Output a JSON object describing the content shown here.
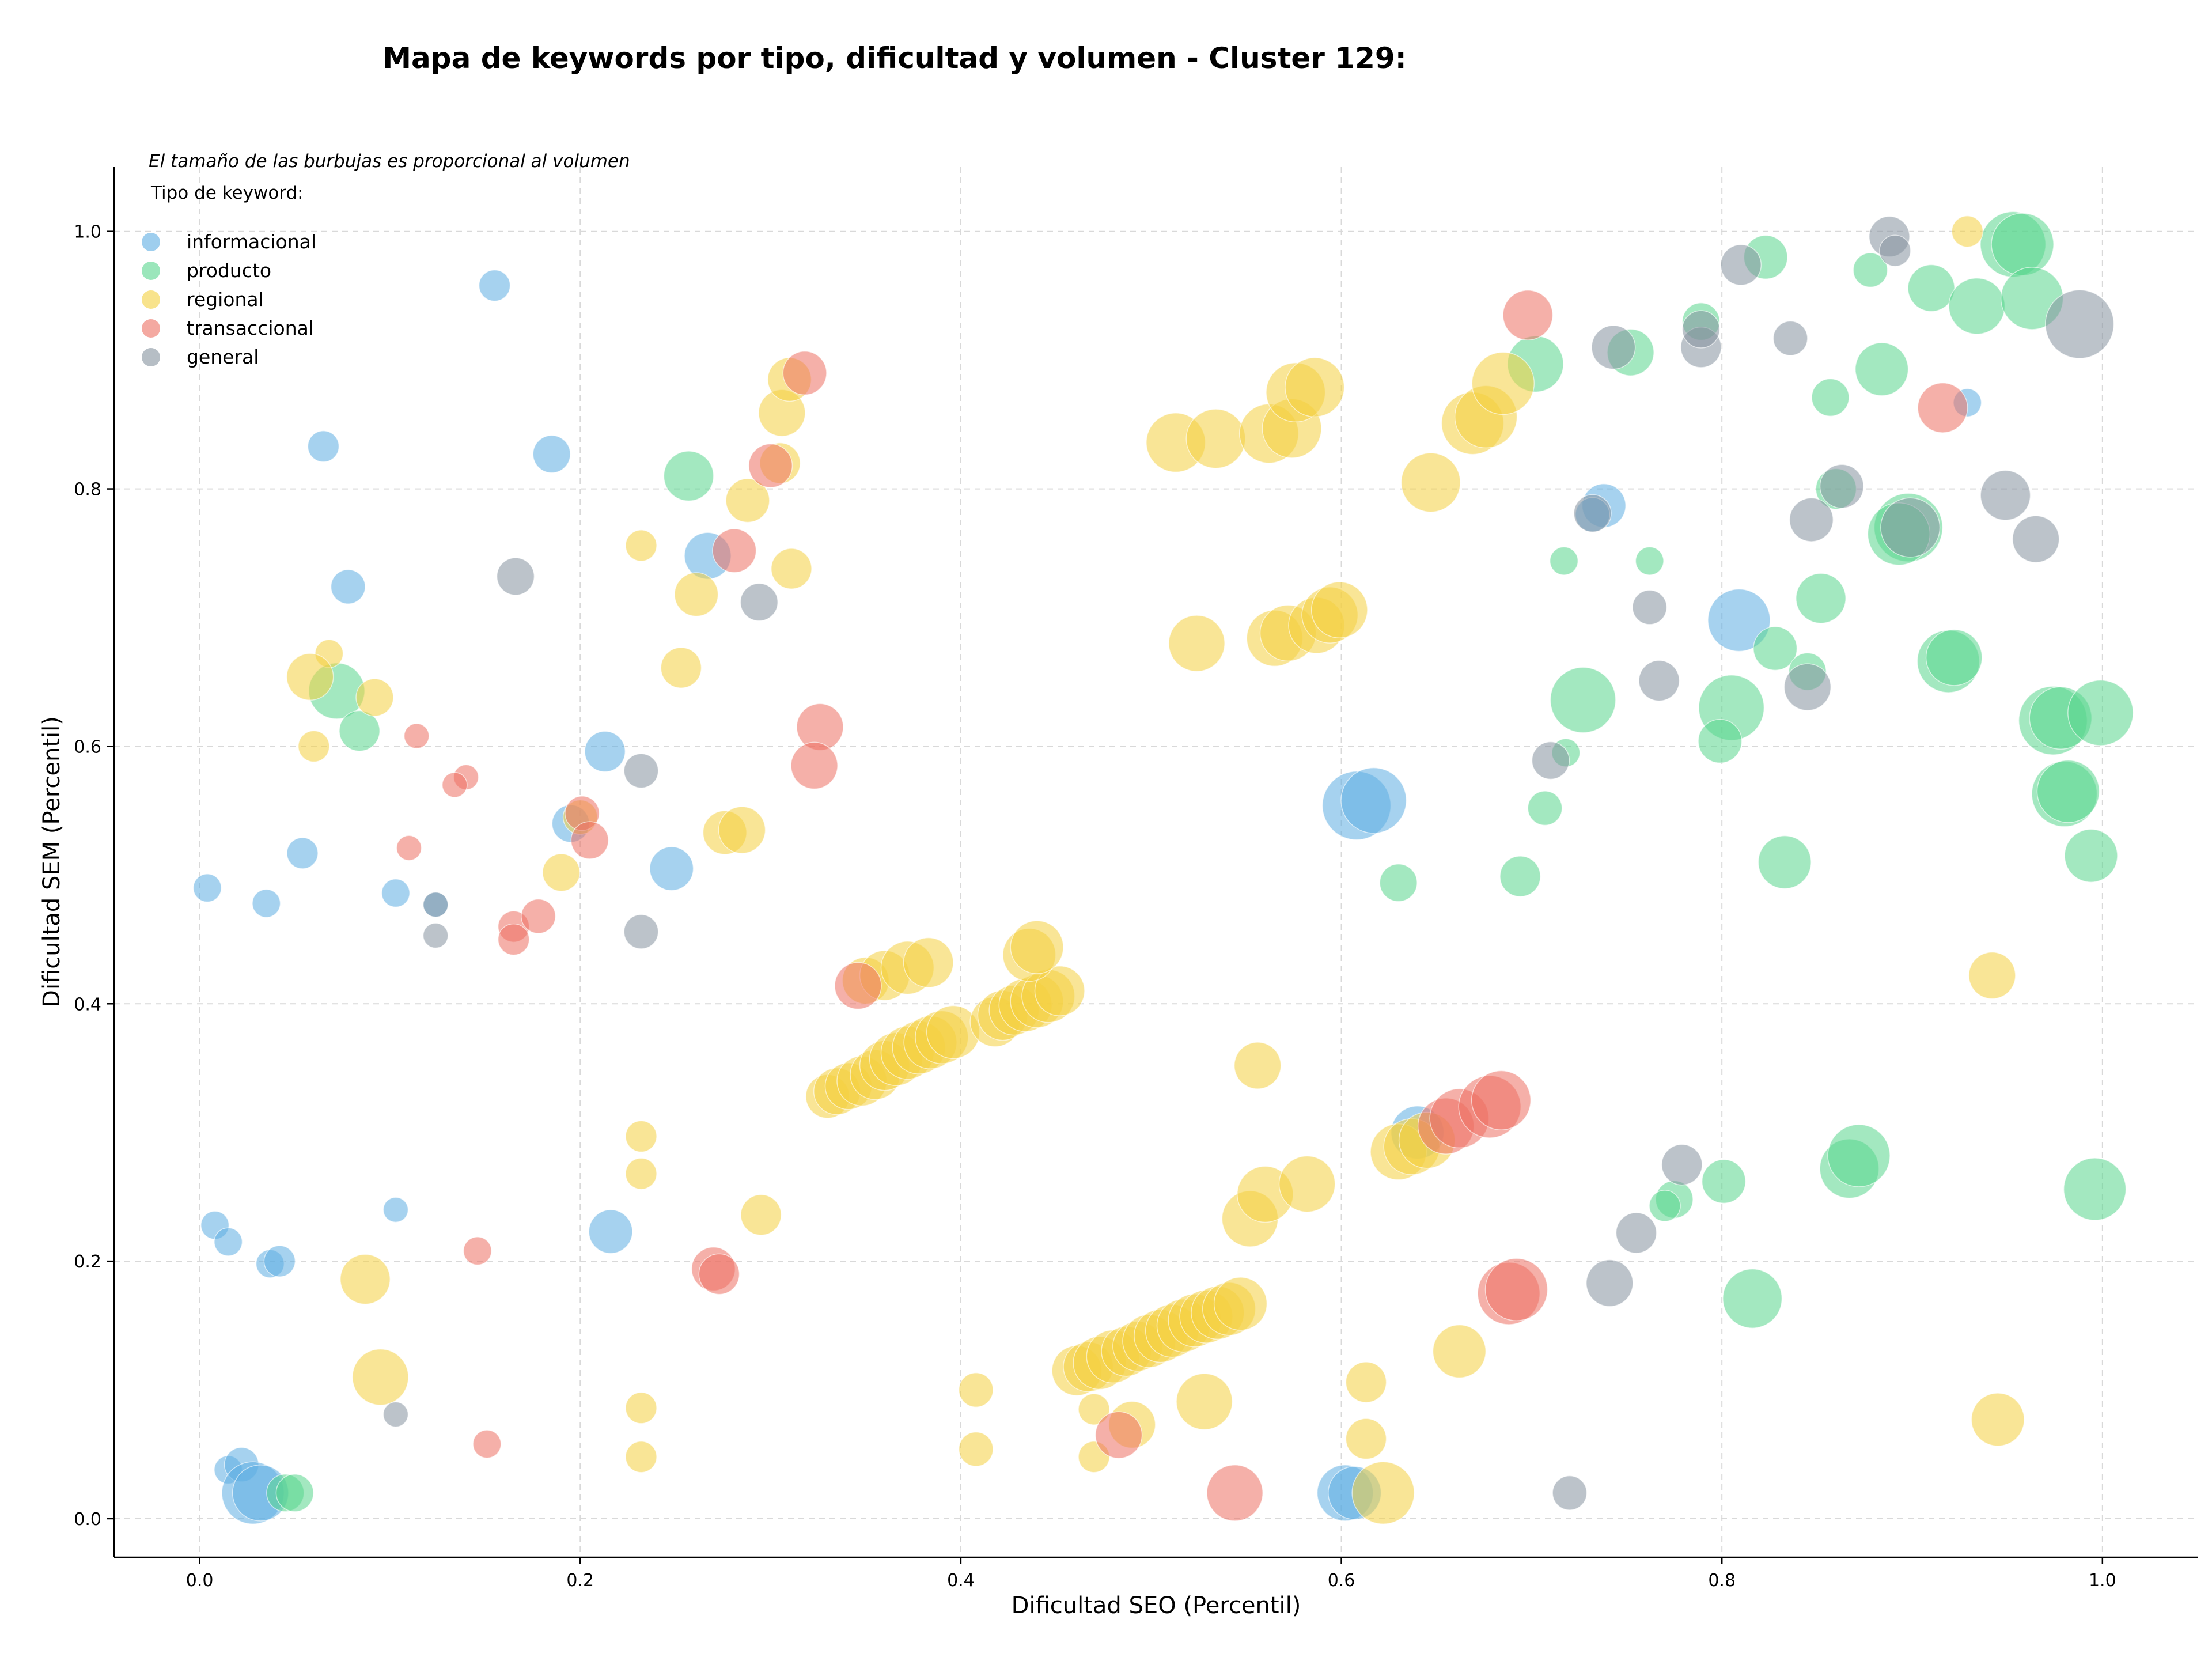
{
  "chart_data": {
    "type": "scatter",
    "title": "Mapa de keywords por tipo, dificultad y volumen - Cluster 129:",
    "xlabel": "Dificultad SEO (Percentil)",
    "ylabel": "Dificultad SEM (Percentil)",
    "xlim": [
      -0.045,
      1.05
    ],
    "ylim": [
      -0.03,
      1.05
    ],
    "x_ticks": [
      "0.0",
      "0.2",
      "0.4",
      "0.6",
      "0.8",
      "1.0"
    ],
    "y_ticks": [
      "0.0",
      "0.2",
      "0.4",
      "0.6",
      "0.8",
      "1.0"
    ],
    "grid": true,
    "annotation": "El tamaño de las burbujas es proporcional al volumen",
    "legend_title": "Tipo de keyword:",
    "legend_position": "top-left",
    "series": [
      {
        "name": "informacional",
        "color": "#5dade2",
        "points": [
          [
            0.155,
            0.958,
            1.0
          ],
          [
            0.065,
            0.833,
            1.0
          ],
          [
            0.185,
            0.827,
            1.2
          ],
          [
            0.078,
            0.724,
            1.1
          ],
          [
            0.213,
            0.596,
            1.3
          ],
          [
            0.195,
            0.54,
            1.2
          ],
          [
            0.054,
            0.517,
            1.0
          ],
          [
            0.004,
            0.49,
            0.9
          ],
          [
            0.103,
            0.486,
            0.9
          ],
          [
            0.035,
            0.478,
            0.9
          ],
          [
            0.124,
            0.477,
            0.8
          ],
          [
            0.248,
            0.505,
            1.4
          ],
          [
            0.267,
            0.748,
            1.5
          ],
          [
            0.008,
            0.228,
            0.9
          ],
          [
            0.015,
            0.215,
            0.9
          ],
          [
            0.037,
            0.198,
            0.9
          ],
          [
            0.042,
            0.2,
            1.0
          ],
          [
            0.103,
            0.24,
            0.8
          ],
          [
            0.216,
            0.223,
            1.4
          ],
          [
            0.015,
            0.038,
            0.9
          ],
          [
            0.022,
            0.042,
            1.1
          ],
          [
            0.028,
            0.02,
            2.0
          ],
          [
            0.032,
            0.02,
            1.8
          ],
          [
            0.608,
            0.554,
            2.2
          ],
          [
            0.617,
            0.558,
            2.1
          ],
          [
            0.602,
            0.02,
            1.8
          ],
          [
            0.607,
            0.02,
            1.7
          ],
          [
            0.64,
            0.3,
            1.7
          ],
          [
            0.738,
            0.787,
            1.4
          ],
          [
            0.732,
            0.78,
            1.1
          ],
          [
            0.809,
            0.698,
            2.0
          ],
          [
            0.929,
            0.867,
            0.9
          ]
        ]
      },
      {
        "name": "producto",
        "color": "#58d68d",
        "points": [
          [
            0.257,
            0.81,
            1.6
          ],
          [
            0.072,
            0.643,
            1.8
          ],
          [
            0.084,
            0.612,
            1.3
          ],
          [
            0.045,
            0.02,
            1.2
          ],
          [
            0.05,
            0.02,
            1.2
          ],
          [
            0.702,
            0.897,
            1.8
          ],
          [
            0.752,
            0.906,
            1.5
          ],
          [
            0.717,
            0.744,
            0.9
          ],
          [
            0.762,
            0.744,
            0.9
          ],
          [
            0.727,
            0.636,
            2.1
          ],
          [
            0.707,
            0.552,
            1.1
          ],
          [
            0.718,
            0.595,
            0.9
          ],
          [
            0.63,
            0.494,
            1.2
          ],
          [
            0.694,
            0.499,
            1.3
          ],
          [
            0.789,
            0.93,
            1.2
          ],
          [
            0.823,
            0.98,
            1.4
          ],
          [
            0.878,
            0.97,
            1.1
          ],
          [
            0.884,
            0.893,
            1.7
          ],
          [
            0.857,
            0.871,
            1.2
          ],
          [
            0.86,
            0.8,
            1.3
          ],
          [
            0.852,
            0.715,
            1.6
          ],
          [
            0.828,
            0.676,
            1.4
          ],
          [
            0.845,
            0.658,
            1.2
          ],
          [
            0.805,
            0.63,
            2.1
          ],
          [
            0.799,
            0.604,
            1.4
          ],
          [
            0.833,
            0.51,
            1.7
          ],
          [
            0.775,
            0.248,
            1.2
          ],
          [
            0.77,
            0.243,
            1.0
          ],
          [
            0.801,
            0.262,
            1.4
          ],
          [
            0.816,
            0.171,
            1.9
          ],
          [
            0.867,
            0.272,
            1.9
          ],
          [
            0.872,
            0.282,
            2.0
          ],
          [
            0.996,
            0.256,
            2.0
          ],
          [
            0.898,
            0.77,
            2.2
          ],
          [
            0.893,
            0.765,
            2.0
          ],
          [
            0.919,
            0.666,
            2.0
          ],
          [
            0.922,
            0.669,
            1.8
          ],
          [
            0.91,
            0.956,
            1.5
          ],
          [
            0.934,
            0.942,
            1.8
          ],
          [
            0.953,
            0.99,
            2.1
          ],
          [
            0.958,
            0.99,
            2.0
          ],
          [
            0.963,
            0.948,
            2.0
          ],
          [
            0.974,
            0.62,
            2.2
          ],
          [
            0.978,
            0.622,
            2.0
          ],
          [
            0.98,
            0.563,
            2.1
          ],
          [
            0.982,
            0.565,
            2.0
          ],
          [
            0.994,
            0.515,
            1.7
          ],
          [
            0.999,
            0.626,
            2.1
          ]
        ]
      },
      {
        "name": "regional",
        "color": "#f4d03f",
        "points": [
          [
            0.068,
            0.672,
            0.9
          ],
          [
            0.058,
            0.654,
            1.5
          ],
          [
            0.092,
            0.638,
            1.2
          ],
          [
            0.06,
            0.6,
            1.0
          ],
          [
            0.087,
            0.186,
            1.6
          ],
          [
            0.095,
            0.11,
            1.8
          ],
          [
            0.232,
            0.756,
            1.0
          ],
          [
            0.253,
            0.661,
            1.3
          ],
          [
            0.261,
            0.718,
            1.4
          ],
          [
            0.19,
            0.502,
            1.2
          ],
          [
            0.2,
            0.545,
            1.1
          ],
          [
            0.232,
            0.297,
            1.0
          ],
          [
            0.232,
            0.268,
            1.0
          ],
          [
            0.295,
            0.236,
            1.3
          ],
          [
            0.232,
            0.086,
            1.0
          ],
          [
            0.232,
            0.048,
            1.0
          ],
          [
            0.288,
            0.791,
            1.4
          ],
          [
            0.306,
            0.859,
            1.5
          ],
          [
            0.311,
            0.738,
            1.3
          ],
          [
            0.31,
            0.885,
            1.4
          ],
          [
            0.305,
            0.82,
            1.3
          ],
          [
            0.276,
            0.533,
            1.4
          ],
          [
            0.285,
            0.535,
            1.5
          ],
          [
            0.33,
            0.328,
            1.4
          ],
          [
            0.335,
            0.332,
            1.5
          ],
          [
            0.341,
            0.336,
            1.5
          ],
          [
            0.348,
            0.34,
            1.6
          ],
          [
            0.355,
            0.345,
            1.6
          ],
          [
            0.36,
            0.352,
            1.6
          ],
          [
            0.366,
            0.357,
            1.7
          ],
          [
            0.372,
            0.362,
            1.7
          ],
          [
            0.378,
            0.366,
            1.7
          ],
          [
            0.384,
            0.37,
            1.7
          ],
          [
            0.39,
            0.374,
            1.7
          ],
          [
            0.396,
            0.378,
            1.7
          ],
          [
            0.35,
            0.418,
            1.5
          ],
          [
            0.36,
            0.422,
            1.6
          ],
          [
            0.372,
            0.428,
            1.7
          ],
          [
            0.383,
            0.432,
            1.6
          ],
          [
            0.418,
            0.386,
            1.6
          ],
          [
            0.422,
            0.391,
            1.6
          ],
          [
            0.428,
            0.395,
            1.6
          ],
          [
            0.434,
            0.399,
            1.7
          ],
          [
            0.44,
            0.402,
            1.7
          ],
          [
            0.446,
            0.406,
            1.7
          ],
          [
            0.452,
            0.41,
            1.6
          ],
          [
            0.436,
            0.438,
            1.7
          ],
          [
            0.44,
            0.444,
            1.7
          ],
          [
            0.408,
            0.1,
            1.1
          ],
          [
            0.408,
            0.054,
            1.1
          ],
          [
            0.461,
            0.115,
            1.6
          ],
          [
            0.467,
            0.118,
            1.6
          ],
          [
            0.473,
            0.121,
            1.7
          ],
          [
            0.48,
            0.126,
            1.7
          ],
          [
            0.487,
            0.13,
            1.6
          ],
          [
            0.493,
            0.134,
            1.6
          ],
          [
            0.499,
            0.138,
            1.7
          ],
          [
            0.505,
            0.142,
            1.7
          ],
          [
            0.511,
            0.146,
            1.7
          ],
          [
            0.517,
            0.15,
            1.7
          ],
          [
            0.523,
            0.154,
            1.7
          ],
          [
            0.529,
            0.157,
            1.7
          ],
          [
            0.535,
            0.16,
            1.7
          ],
          [
            0.541,
            0.163,
            1.7
          ],
          [
            0.547,
            0.167,
            1.7
          ],
          [
            0.47,
            0.085,
            1.0
          ],
          [
            0.47,
            0.048,
            1.0
          ],
          [
            0.49,
            0.073,
            1.5
          ],
          [
            0.528,
            0.091,
            1.8
          ],
          [
            0.556,
            0.352,
            1.5
          ],
          [
            0.552,
            0.233,
            1.8
          ],
          [
            0.56,
            0.252,
            1.8
          ],
          [
            0.582,
            0.26,
            1.8
          ],
          [
            0.613,
            0.106,
            1.3
          ],
          [
            0.613,
            0.062,
            1.3
          ],
          [
            0.622,
            0.02,
            2.0
          ],
          [
            0.63,
            0.285,
            1.8
          ],
          [
            0.637,
            0.289,
            1.8
          ],
          [
            0.645,
            0.294,
            1.8
          ],
          [
            0.662,
            0.13,
            1.7
          ],
          [
            0.524,
            0.68,
            1.8
          ],
          [
            0.565,
            0.684,
            1.8
          ],
          [
            0.572,
            0.688,
            1.8
          ],
          [
            0.587,
            0.694,
            1.8
          ],
          [
            0.594,
            0.702,
            1.8
          ],
          [
            0.599,
            0.706,
            1.8
          ],
          [
            0.513,
            0.836,
            1.9
          ],
          [
            0.534,
            0.839,
            1.9
          ],
          [
            0.562,
            0.843,
            1.9
          ],
          [
            0.574,
            0.847,
            1.9
          ],
          [
            0.576,
            0.875,
            1.9
          ],
          [
            0.586,
            0.879,
            1.9
          ],
          [
            0.647,
            0.805,
            1.9
          ],
          [
            0.669,
            0.851,
            2.0
          ],
          [
            0.676,
            0.856,
            2.0
          ],
          [
            0.685,
            0.882,
            2.0
          ],
          [
            0.929,
            1.0,
            1.0
          ],
          [
            0.942,
            0.422,
            1.5
          ],
          [
            0.945,
            0.077,
            1.7
          ]
        ]
      },
      {
        "name": "transaccional",
        "color": "#ec7063",
        "points": [
          [
            0.318,
            0.89,
            1.4
          ],
          [
            0.3,
            0.818,
            1.4
          ],
          [
            0.281,
            0.752,
            1.4
          ],
          [
            0.326,
            0.615,
            1.5
          ],
          [
            0.323,
            0.585,
            1.5
          ],
          [
            0.114,
            0.608,
            0.8
          ],
          [
            0.14,
            0.576,
            0.8
          ],
          [
            0.134,
            0.57,
            0.8
          ],
          [
            0.11,
            0.521,
            0.8
          ],
          [
            0.201,
            0.548,
            1.1
          ],
          [
            0.205,
            0.527,
            1.2
          ],
          [
            0.165,
            0.46,
            1.0
          ],
          [
            0.178,
            0.468,
            1.1
          ],
          [
            0.165,
            0.45,
            1.0
          ],
          [
            0.146,
            0.208,
            0.9
          ],
          [
            0.151,
            0.058,
            0.9
          ],
          [
            0.27,
            0.194,
            1.4
          ],
          [
            0.273,
            0.19,
            1.3
          ],
          [
            0.346,
            0.414,
            1.5
          ],
          [
            0.483,
            0.065,
            1.5
          ],
          [
            0.698,
            0.935,
            1.6
          ],
          [
            0.544,
            0.02,
            1.8
          ],
          [
            0.688,
            0.175,
            2.0
          ],
          [
            0.692,
            0.178,
            2.0
          ],
          [
            0.655,
            0.305,
            1.8
          ],
          [
            0.662,
            0.311,
            1.9
          ],
          [
            0.678,
            0.32,
            2.0
          ],
          [
            0.684,
            0.325,
            1.9
          ],
          [
            0.916,
            0.863,
            1.6
          ]
        ]
      },
      {
        "name": "general",
        "color": "#85929e",
        "points": [
          [
            0.166,
            0.732,
            1.2
          ],
          [
            0.124,
            0.477,
            0.8
          ],
          [
            0.124,
            0.453,
            0.8
          ],
          [
            0.103,
            0.081,
            0.8
          ],
          [
            0.232,
            0.581,
            1.1
          ],
          [
            0.232,
            0.456,
            1.1
          ],
          [
            0.294,
            0.712,
            1.2
          ],
          [
            0.72,
            0.02,
            1.1
          ],
          [
            0.741,
            0.183,
            1.5
          ],
          [
            0.755,
            0.222,
            1.3
          ],
          [
            0.779,
            0.275,
            1.3
          ],
          [
            0.71,
            0.589,
            1.2
          ],
          [
            0.732,
            0.781,
            1.2
          ],
          [
            0.743,
            0.91,
            1.4
          ],
          [
            0.762,
            0.708,
            1.1
          ],
          [
            0.767,
            0.651,
            1.3
          ],
          [
            0.789,
            0.91,
            1.3
          ],
          [
            0.789,
            0.924,
            1.2
          ],
          [
            0.81,
            0.974,
            1.3
          ],
          [
            0.836,
            0.917,
            1.1
          ],
          [
            0.845,
            0.646,
            1.5
          ],
          [
            0.847,
            0.776,
            1.4
          ],
          [
            0.863,
            0.802,
            1.4
          ],
          [
            0.888,
            0.996,
            1.3
          ],
          [
            0.891,
            0.985,
            1.0
          ],
          [
            0.899,
            0.77,
            1.9
          ],
          [
            0.949,
            0.795,
            1.6
          ],
          [
            0.965,
            0.761,
            1.5
          ],
          [
            0.988,
            0.928,
            2.2
          ]
        ]
      }
    ]
  }
}
